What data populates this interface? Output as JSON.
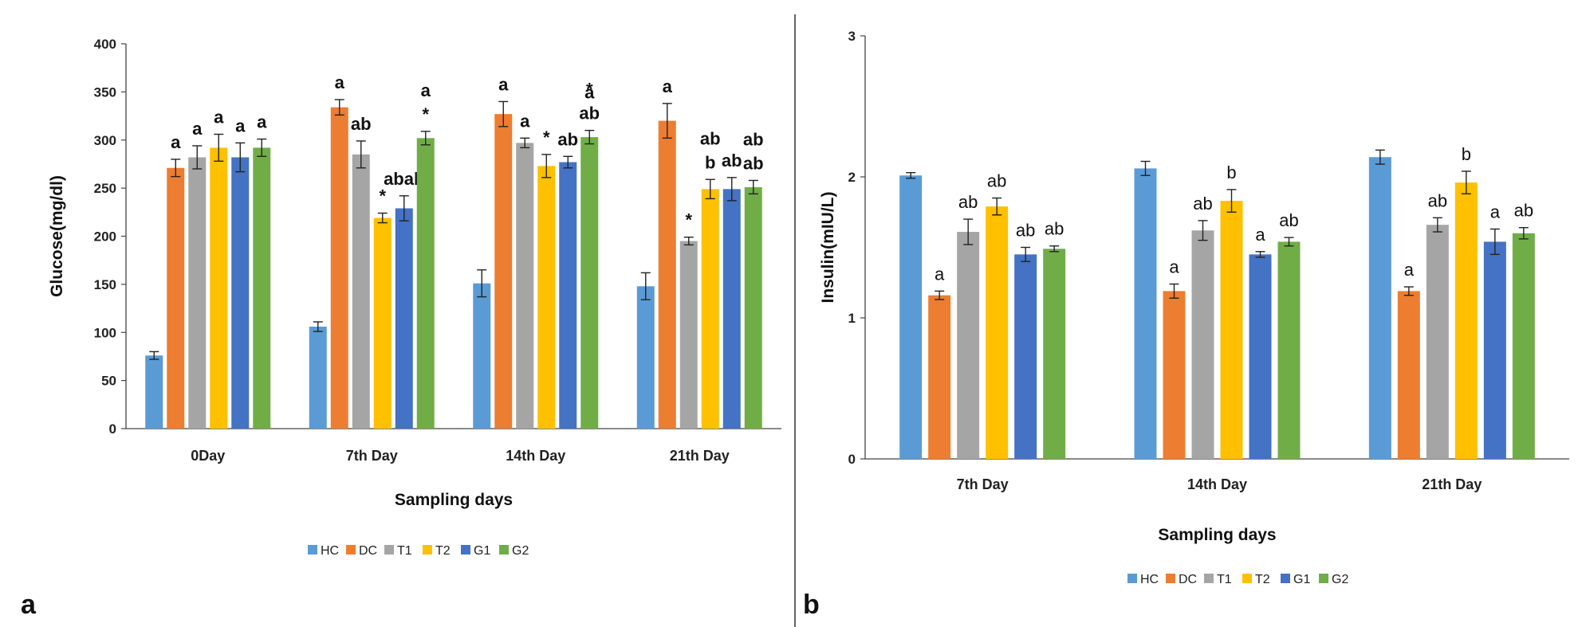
{
  "colors": {
    "HC": "#5b9bd5",
    "DC": "#ed7d31",
    "T1": "#a5a5a5",
    "T2": "#ffc000",
    "G1": "#4472c4",
    "G2": "#70ad47"
  },
  "chart_data": [
    {
      "panel": "a",
      "type": "bar",
      "title": "",
      "xlabel": "Sampling days",
      "ylabel": "Glucose(mg/dl)",
      "ylim": [
        0,
        400
      ],
      "yticks": [
        0,
        50,
        100,
        150,
        200,
        250,
        300,
        350,
        400
      ],
      "categories": [
        "0Day",
        "7th Day",
        "14th Day",
        "21th Day"
      ],
      "legend": "bottom",
      "series": [
        {
          "name": "HC",
          "values": [
            76,
            106,
            151,
            148
          ],
          "errors": [
            4,
            5,
            14,
            14
          ],
          "labels": [
            "",
            "",
            "",
            ""
          ]
        },
        {
          "name": "DC",
          "values": [
            271,
            334,
            327,
            320
          ],
          "errors": [
            9,
            8,
            13,
            18
          ],
          "labels": [
            "a",
            "a",
            "a",
            "a"
          ]
        },
        {
          "name": "T1",
          "values": [
            282,
            285,
            297,
            195
          ],
          "errors": [
            12,
            14,
            5,
            4
          ],
          "labels": [
            "a",
            "ab",
            "a",
            "*"
          ]
        },
        {
          "name": "T2",
          "values": [
            292,
            219,
            273,
            249
          ],
          "errors": [
            14,
            5,
            12,
            10
          ],
          "labels": [
            "a",
            "*",
            "*",
            "b"
          ]
        },
        {
          "name": "G1",
          "values": [
            282,
            229,
            277,
            249
          ],
          "errors": [
            15,
            13,
            6,
            12
          ],
          "labels": [
            "a",
            "abab",
            "ab",
            "ab"
          ]
        },
        {
          "name": "G2",
          "values": [
            292,
            302,
            303,
            251
          ],
          "errors": [
            9,
            7,
            7,
            7
          ],
          "labels": [
            "a",
            "*",
            "ab",
            "ab"
          ]
        }
      ],
      "extra_labels": [
        {
          "category": "7th Day",
          "series": "G2",
          "text": "a"
        },
        {
          "category": "14th Day",
          "series": "G2",
          "text": "*"
        },
        {
          "category": "14th Day",
          "series": "G2",
          "text2": "a"
        },
        {
          "category": "21th Day",
          "series": "T2",
          "text": "ab"
        },
        {
          "category": "21th Day",
          "series": "G2",
          "text": "ab"
        }
      ]
    },
    {
      "panel": "b",
      "type": "bar",
      "title": "",
      "xlabel": "Sampling days",
      "ylabel": "Insulin(mIU/L)",
      "ylim": [
        0,
        3
      ],
      "yticks": [
        0,
        1,
        2,
        3
      ],
      "categories": [
        "7th Day",
        "14th Day",
        "21th Day"
      ],
      "legend": "bottom",
      "series": [
        {
          "name": "HC",
          "values": [
            2.01,
            2.06,
            2.14
          ],
          "errors": [
            0.02,
            0.05,
            0.05
          ],
          "labels": [
            "",
            "",
            ""
          ]
        },
        {
          "name": "DC",
          "values": [
            1.16,
            1.19,
            1.19
          ],
          "errors": [
            0.03,
            0.05,
            0.03
          ],
          "labels": [
            "a",
            "a",
            "a"
          ]
        },
        {
          "name": "T1",
          "values": [
            1.61,
            1.62,
            1.66
          ],
          "errors": [
            0.09,
            0.07,
            0.05
          ],
          "labels": [
            "ab",
            "ab",
            "ab"
          ]
        },
        {
          "name": "T2",
          "values": [
            1.79,
            1.83,
            1.96
          ],
          "errors": [
            0.06,
            0.08,
            0.08
          ],
          "labels": [
            "ab",
            "b",
            "b"
          ]
        },
        {
          "name": "G1",
          "values": [
            1.45,
            1.45,
            1.54
          ],
          "errors": [
            0.05,
            0.02,
            0.09
          ],
          "labels": [
            "ab",
            "a",
            "a"
          ]
        },
        {
          "name": "G2",
          "values": [
            1.49,
            1.54,
            1.6
          ],
          "errors": [
            0.02,
            0.03,
            0.04
          ],
          "labels": [
            "ab",
            "ab",
            "ab"
          ]
        }
      ]
    }
  ],
  "panel_letters": [
    "a",
    "b"
  ]
}
